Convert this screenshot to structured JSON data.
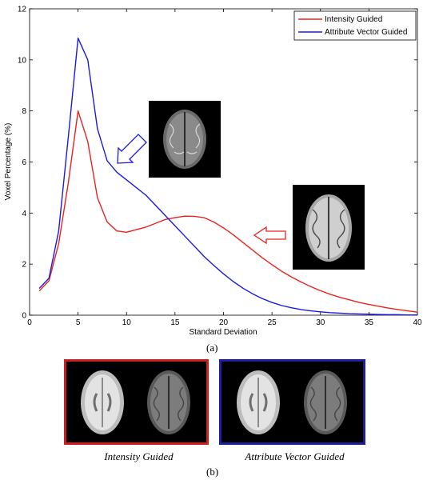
{
  "chart_data": {
    "type": "line",
    "xlabel": "Standard Deviation",
    "ylabel": "Voxel Percentage (%)",
    "xlim": [
      0,
      40
    ],
    "ylim": [
      0,
      12
    ],
    "xticks": [
      0,
      5,
      10,
      15,
      20,
      25,
      30,
      35,
      40
    ],
    "yticks": [
      0,
      2,
      4,
      6,
      8,
      10,
      12
    ],
    "grid": false,
    "legend_position": "top-right",
    "series": [
      {
        "name": "Intensity Guided",
        "color": "#e8231e",
        "x": [
          1,
          2,
          3,
          4,
          5,
          6,
          7,
          8,
          9,
          10,
          11,
          12,
          13,
          14,
          15,
          16,
          17,
          18,
          19,
          20,
          21,
          22,
          23,
          24,
          25,
          26,
          27,
          28,
          29,
          30,
          31,
          32,
          33,
          34,
          35,
          36,
          37,
          38,
          39,
          40
        ],
        "values": [
          0.95,
          1.35,
          2.8,
          5.2,
          8.0,
          6.8,
          4.6,
          3.65,
          3.3,
          3.25,
          3.35,
          3.45,
          3.6,
          3.75,
          3.82,
          3.88,
          3.87,
          3.82,
          3.65,
          3.42,
          3.15,
          2.85,
          2.55,
          2.25,
          1.98,
          1.72,
          1.5,
          1.3,
          1.12,
          0.96,
          0.82,
          0.7,
          0.6,
          0.5,
          0.42,
          0.35,
          0.28,
          0.22,
          0.17,
          0.12
        ]
      },
      {
        "name": "Attribute Vector Guided",
        "color": "#1a1ae0",
        "x": [
          1,
          2,
          3,
          4,
          5,
          6,
          7,
          8,
          9,
          10,
          11,
          12,
          13,
          14,
          15,
          16,
          17,
          18,
          19,
          20,
          21,
          22,
          23,
          24,
          25,
          26,
          27,
          28,
          29,
          30,
          31,
          32,
          33,
          34,
          35,
          36,
          37,
          38,
          39,
          40
        ],
        "values": [
          1.05,
          1.45,
          3.3,
          7.0,
          10.85,
          10.0,
          7.3,
          6.05,
          5.6,
          5.3,
          5.0,
          4.7,
          4.3,
          3.9,
          3.5,
          3.1,
          2.7,
          2.3,
          1.95,
          1.62,
          1.32,
          1.06,
          0.84,
          0.65,
          0.5,
          0.38,
          0.29,
          0.22,
          0.17,
          0.13,
          0.1,
          0.08,
          0.06,
          0.05,
          0.04,
          0.03,
          0.02,
          0.02,
          0.01,
          0.01
        ]
      }
    ],
    "annotations": [
      {
        "type": "arrow",
        "color": "#1a1ae0",
        "points_to_series": "Attribute Vector Guided"
      },
      {
        "type": "arrow",
        "color": "#e8231e",
        "points_to_series": "Intensity Guided"
      }
    ]
  },
  "captions": {
    "a": "(a)",
    "b": "(b)"
  },
  "panels": [
    {
      "label": "Intensity Guided",
      "border_color": "#cc1e1e"
    },
    {
      "label": "Attribute Vector Guided",
      "border_color": "#1e1e9a"
    }
  ]
}
